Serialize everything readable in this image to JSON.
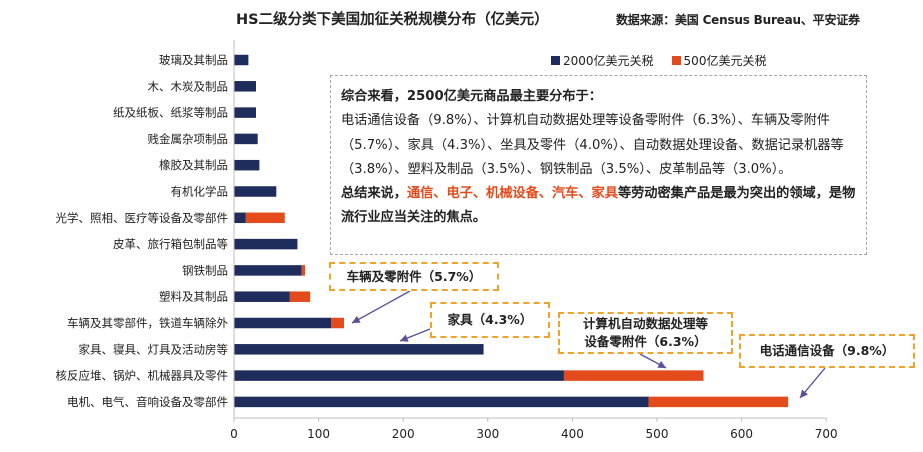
{
  "header": {
    "title": "HS二级分类下美国加征关税规模分布（亿美元）",
    "source": "数据来源：美国 Census Bureau、平安证券"
  },
  "legend": {
    "series_a": "2000亿美元关税",
    "series_b": "500亿美元关税"
  },
  "colors": {
    "series_a": "#1f2d5c",
    "series_b": "#e34b1c",
    "callout_border": "#f0a32a",
    "arrow": "#5b4e9a"
  },
  "summary": {
    "line1": "综合来看，2500亿美元商品最主要分布于：",
    "body": "电话通信设备（9.8%）、计算机自动数据处理等设备零附件（6.3%）、车辆及零附件（5.7%）、家具（4.3%）、坐具及零件（4.0%）、自动数据处理设备、数据记录机器等（3.8%）、塑料及制品（3.5%）、钢铁制品（3.5%）、皮革制品等（3.0%）。",
    "conclusion_prefix": "总结来说，",
    "conclusion_highlight": "通信、电子、机械设备、汽车、家具",
    "conclusion_suffix": "等劳动密集产品是最为突出的领域，是物流行业应当关注的焦点。"
  },
  "callouts": {
    "vehicles": "车辆及零附件（5.7%）",
    "furniture": "家具（4.3%）",
    "computer_line1": "计算机自动数据处理等",
    "computer_line2": "设备零附件（6.3%）",
    "telecom": "电话通信设备（9.8%）"
  },
  "chart_data": {
    "type": "bar",
    "orientation": "horizontal",
    "stacked": true,
    "title": "HS二级分类下美国加征关税规模分布（亿美元）",
    "categories": [
      "玻璃及其制品",
      "木、木炭及制品",
      "纸及纸板、纸浆等制品",
      "贱金属杂项制品",
      "橡胶及其制品",
      "有机化学品",
      "光学、照相、医疗等设备及零部件",
      "皮革、旅行箱包制品等",
      "钢铁制品",
      "塑料及其制品",
      "车辆及其零部件，铁道车辆除外",
      "家具、寝具、灯具及活动房等",
      "核反应堆、锅炉、机械器具及零件",
      "电机、电气、音响设备及零部件"
    ],
    "series": [
      {
        "name": "2000亿美元关税",
        "values": [
          17,
          26,
          26,
          28,
          30,
          50,
          14,
          75,
          80,
          66,
          115,
          295,
          390,
          490
        ]
      },
      {
        "name": "500亿美元关税",
        "values": [
          0,
          0,
          0,
          0,
          0,
          0,
          46,
          0,
          4,
          24,
          15,
          0,
          165,
          165
        ]
      }
    ],
    "xlim": [
      0,
      700
    ],
    "xticks": [
      0,
      100,
      200,
      300,
      400,
      500,
      600,
      700
    ],
    "legend_position": "top"
  }
}
